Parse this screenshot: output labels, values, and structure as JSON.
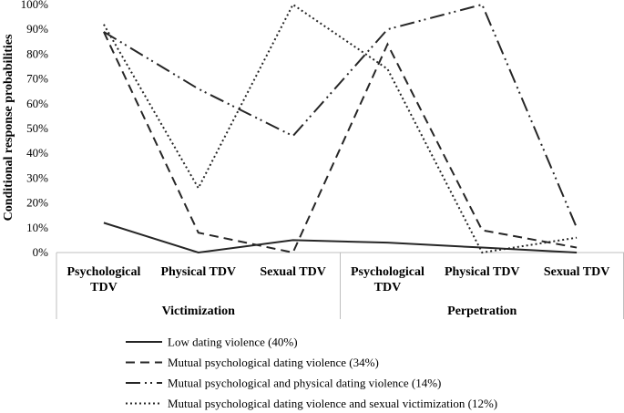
{
  "chart_data": {
    "type": "line",
    "ylabel": "Conditional response probabilities",
    "xlabel": "",
    "ylim": [
      0,
      100
    ],
    "yticks": [
      "0%",
      "10%",
      "20%",
      "30%",
      "40%",
      "50%",
      "60%",
      "70%",
      "80%",
      "90%",
      "100%"
    ],
    "categories": [
      [
        "Psychological",
        "TDV"
      ],
      [
        "Physical TDV"
      ],
      [
        "Sexual TDV"
      ],
      [
        "Psychological",
        "TDV"
      ],
      [
        "Physical TDV"
      ],
      [
        "Sexual TDV"
      ]
    ],
    "groups": [
      {
        "label": "Victimization",
        "span": [
          0,
          2
        ]
      },
      {
        "label": "Perpetration",
        "span": [
          3,
          5
        ]
      }
    ],
    "series": [
      {
        "name": "Low dating violence (40%)",
        "dash": "",
        "values": [
          12,
          0,
          5,
          4,
          2,
          0
        ]
      },
      {
        "name": "Mutual psychological dating violence (34%)",
        "dash": "10,6",
        "values": [
          89,
          8,
          0,
          84,
          9,
          2
        ]
      },
      {
        "name": "Mutual psychological and physical dating violence (14%)",
        "dash": "16,5,2,4,2,5",
        "values": [
          89,
          66,
          47,
          90,
          100,
          10
        ]
      },
      {
        "name": "Mutual psychological dating violence and sexual victimization (12%)",
        "dash": "2,3",
        "values": [
          92,
          26,
          100,
          74,
          0,
          6
        ]
      }
    ],
    "legend_position": "bottom",
    "grid": false,
    "colors": {
      "line": "#262626",
      "axis": "#bfbfbf"
    }
  }
}
